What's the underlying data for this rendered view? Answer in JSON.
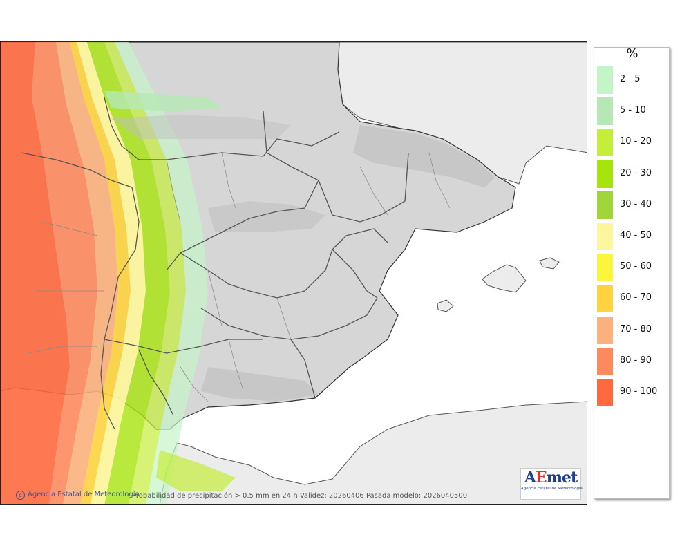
{
  "map": {
    "credit": "Agencia Estatal de Meteorología",
    "caption": "Probabilidad de precipitación > 0.5 mm en 24 h Validez: 20260406 Pasada modelo: 2026040500",
    "logo": {
      "prefix": "A",
      "accent": "E",
      "suffix": "met",
      "subtitle": "Agencia Estatal de Meteorología"
    }
  },
  "legend": {
    "unit": "%",
    "items": [
      {
        "label": "2 - 5",
        "color": "#c4f5c7"
      },
      {
        "label": "5 - 10",
        "color": "#b5e8b5"
      },
      {
        "label": "10 - 20",
        "color": "#c4ee3a"
      },
      {
        "label": "20 - 30",
        "color": "#a6e40b"
      },
      {
        "label": "30 - 40",
        "color": "#a1d63b"
      },
      {
        "label": "40 - 50",
        "color": "#fcf69e"
      },
      {
        "label": "50 - 60",
        "color": "#fcf53d"
      },
      {
        "label": "60 - 70",
        "color": "#fed33f"
      },
      {
        "label": "70 - 80",
        "color": "#fbb17d"
      },
      {
        "label": "80 - 90",
        "color": "#fd8a5e"
      },
      {
        "label": "90 - 100",
        "color": "#fe6a3e"
      }
    ]
  }
}
